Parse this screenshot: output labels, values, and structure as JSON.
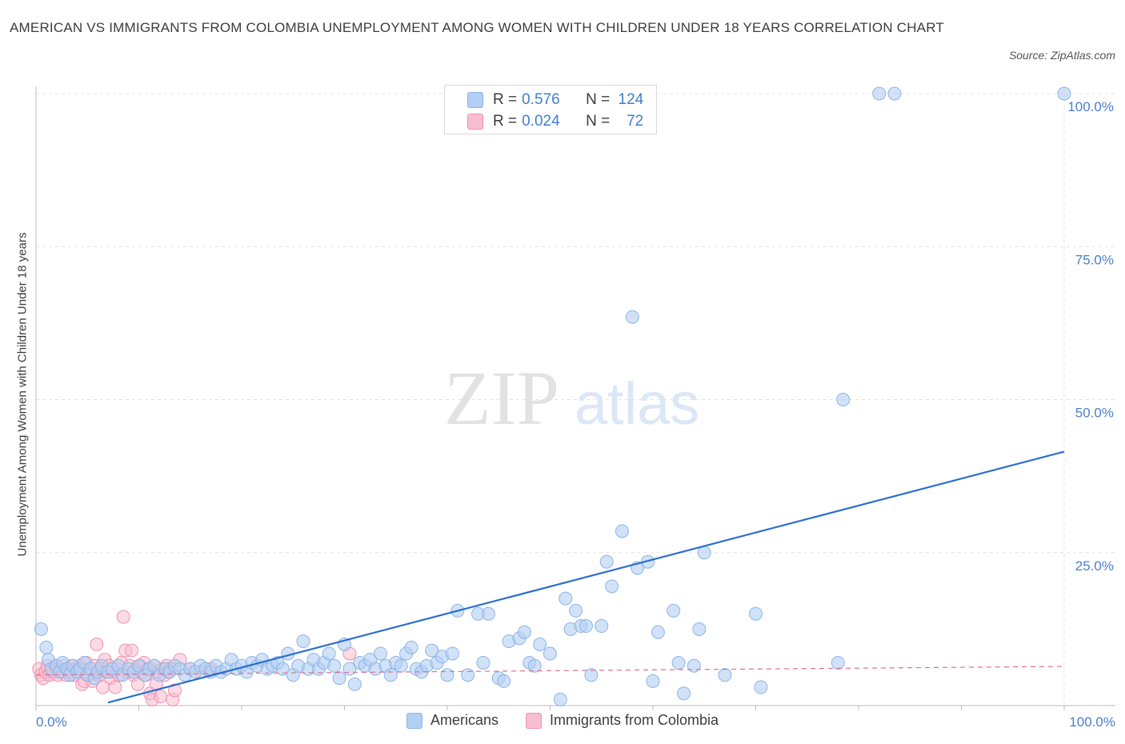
{
  "header": {
    "title": "AMERICAN VS IMMIGRANTS FROM COLOMBIA UNEMPLOYMENT AMONG WOMEN WITH CHILDREN UNDER 18 YEARS CORRELATION CHART",
    "source": "Source: ZipAtlas.com"
  },
  "watermark": {
    "zip": "ZIP",
    "atlas": "atlas"
  },
  "legend": {
    "rows": [
      {
        "r_label": "R =",
        "r_value": "0.576",
        "n_label": "N =",
        "n_value": "124"
      },
      {
        "r_label": "R =",
        "r_value": "0.024",
        "n_label": "N =",
        "n_value": "72"
      }
    ]
  },
  "colors": {
    "americans_fill": "#b3cff3",
    "americans_stroke": "#8db4e6",
    "americans_line": "#2a6fcf",
    "colombia_fill": "#f9bdd0",
    "colombia_stroke": "#f091ae",
    "colombia_line": "#e06d93",
    "axis_text": "#4a7fcb",
    "grid": "#e3e3e3"
  },
  "chart_data": {
    "type": "scatter",
    "title": "AMERICAN VS IMMIGRANTS FROM COLOMBIA UNEMPLOYMENT AMONG WOMEN WITH CHILDREN UNDER 18 YEARS CORRELATION CHART",
    "xlabel": "",
    "ylabel": "Unemployment Among Women with Children Under 18 years",
    "xlim": [
      0,
      100
    ],
    "ylim": [
      0,
      100
    ],
    "x_tick_labels": [
      "0.0%",
      "100.0%"
    ],
    "y_ticks": [
      25,
      50,
      75,
      100
    ],
    "y_tick_labels": [
      "25.0%",
      "50.0%",
      "75.0%",
      "100.0%"
    ],
    "grid": true,
    "legend_position": "bottom",
    "series": [
      {
        "name": "Americans",
        "R": 0.576,
        "N": 124,
        "trend": {
          "x": [
            7,
            100
          ],
          "y": [
            0.5,
            41.5
          ]
        },
        "points": [
          [
            0.5,
            12.5
          ],
          [
            1.0,
            9.5
          ],
          [
            1.2,
            7.5
          ],
          [
            1.5,
            6.0
          ],
          [
            2.0,
            6.5
          ],
          [
            2.3,
            5.5
          ],
          [
            2.6,
            7.0
          ],
          [
            3.0,
            6.0
          ],
          [
            3.3,
            5.0
          ],
          [
            3.6,
            6.5
          ],
          [
            4.0,
            5.5
          ],
          [
            4.3,
            6.0
          ],
          [
            4.7,
            7.0
          ],
          [
            5.0,
            5.0
          ],
          [
            5.3,
            6.0
          ],
          [
            5.7,
            4.5
          ],
          [
            6.0,
            5.5
          ],
          [
            6.4,
            6.5
          ],
          [
            7.0,
            5.5
          ],
          [
            7.4,
            6.0
          ],
          [
            8.0,
            6.5
          ],
          [
            8.4,
            5.0
          ],
          [
            9.0,
            6.0
          ],
          [
            9.5,
            5.5
          ],
          [
            10.0,
            6.5
          ],
          [
            10.6,
            5.0
          ],
          [
            11.0,
            6.0
          ],
          [
            11.5,
            6.5
          ],
          [
            12.0,
            5.0
          ],
          [
            12.6,
            6.0
          ],
          [
            13.0,
            5.5
          ],
          [
            13.5,
            6.5
          ],
          [
            14.0,
            6.0
          ],
          [
            14.5,
            5.0
          ],
          [
            15.0,
            6.0
          ],
          [
            15.5,
            5.5
          ],
          [
            16.0,
            6.5
          ],
          [
            16.5,
            6.0
          ],
          [
            17.0,
            5.5
          ],
          [
            17.5,
            6.5
          ],
          [
            18.0,
            5.5
          ],
          [
            18.5,
            6.0
          ],
          [
            19.0,
            7.5
          ],
          [
            19.5,
            6.0
          ],
          [
            20.0,
            6.5
          ],
          [
            20.5,
            5.5
          ],
          [
            21.0,
            7.0
          ],
          [
            21.5,
            6.5
          ],
          [
            22.0,
            7.5
          ],
          [
            22.5,
            6.0
          ],
          [
            23.0,
            6.5
          ],
          [
            23.5,
            7.0
          ],
          [
            24.0,
            6.0
          ],
          [
            24.5,
            8.5
          ],
          [
            25.0,
            5.0
          ],
          [
            25.5,
            6.5
          ],
          [
            26.0,
            10.5
          ],
          [
            26.5,
            6.0
          ],
          [
            27.0,
            7.5
          ],
          [
            27.5,
            6.0
          ],
          [
            28.0,
            7.0
          ],
          [
            28.5,
            8.5
          ],
          [
            29.0,
            6.5
          ],
          [
            29.5,
            4.5
          ],
          [
            30.0,
            10.0
          ],
          [
            30.5,
            6.0
          ],
          [
            31.0,
            3.5
          ],
          [
            31.5,
            7.0
          ],
          [
            32.0,
            6.5
          ],
          [
            32.5,
            7.5
          ],
          [
            33.0,
            6.0
          ],
          [
            33.5,
            8.5
          ],
          [
            34.0,
            6.5
          ],
          [
            34.5,
            5.0
          ],
          [
            35.0,
            7.0
          ],
          [
            35.5,
            6.5
          ],
          [
            36.0,
            8.5
          ],
          [
            36.5,
            9.5
          ],
          [
            37.0,
            6.0
          ],
          [
            37.5,
            5.5
          ],
          [
            38.0,
            6.5
          ],
          [
            38.5,
            9.0
          ],
          [
            39.0,
            7.0
          ],
          [
            39.5,
            8.0
          ],
          [
            40.0,
            5.0
          ],
          [
            40.5,
            8.5
          ],
          [
            41.0,
            15.5
          ],
          [
            42.0,
            5.0
          ],
          [
            43.0,
            15.0
          ],
          [
            43.5,
            7.0
          ],
          [
            44.0,
            15.0
          ],
          [
            45.0,
            4.5
          ],
          [
            45.5,
            4.0
          ],
          [
            46.0,
            10.5
          ],
          [
            47.0,
            11.0
          ],
          [
            47.5,
            12.0
          ],
          [
            48.0,
            7.0
          ],
          [
            48.5,
            6.5
          ],
          [
            49.0,
            10.0
          ],
          [
            50.0,
            8.5
          ],
          [
            51.0,
            1.0
          ],
          [
            51.5,
            17.5
          ],
          [
            52.0,
            12.5
          ],
          [
            52.5,
            15.5
          ],
          [
            53.0,
            13.0
          ],
          [
            53.5,
            13.0
          ],
          [
            54.0,
            5.0
          ],
          [
            55.0,
            13.0
          ],
          [
            55.5,
            23.5
          ],
          [
            56.0,
            19.5
          ],
          [
            57.0,
            28.5
          ],
          [
            58.0,
            63.5
          ],
          [
            58.5,
            22.5
          ],
          [
            59.5,
            23.5
          ],
          [
            60.0,
            4.0
          ],
          [
            60.5,
            12.0
          ],
          [
            62.0,
            15.5
          ],
          [
            62.5,
            7.0
          ],
          [
            63.0,
            2.0
          ],
          [
            64.0,
            6.5
          ],
          [
            64.5,
            12.5
          ],
          [
            65.0,
            25.0
          ],
          [
            67.0,
            5.0
          ],
          [
            70.0,
            15.0
          ],
          [
            70.5,
            3.0
          ],
          [
            78.0,
            7.0
          ],
          [
            78.5,
            50.0
          ],
          [
            82.0,
            100.0
          ],
          [
            83.5,
            100.0
          ],
          [
            100.0,
            100.0
          ]
        ]
      },
      {
        "name": "Immigrants from Colombia",
        "R": 0.024,
        "N": 72,
        "trend": {
          "x": [
            0,
            100
          ],
          "y": [
            5.0,
            6.4
          ]
        },
        "points": [
          [
            0.3,
            6.0
          ],
          [
            0.5,
            5.0
          ],
          [
            0.7,
            4.5
          ],
          [
            0.9,
            5.5
          ],
          [
            1.1,
            6.5
          ],
          [
            1.3,
            5.0
          ],
          [
            1.5,
            6.0
          ],
          [
            1.7,
            5.5
          ],
          [
            1.9,
            6.5
          ],
          [
            2.1,
            5.0
          ],
          [
            2.3,
            6.0
          ],
          [
            2.5,
            5.5
          ],
          [
            2.7,
            6.5
          ],
          [
            2.9,
            5.0
          ],
          [
            3.1,
            6.0
          ],
          [
            3.3,
            5.5
          ],
          [
            3.5,
            6.5
          ],
          [
            3.7,
            5.0
          ],
          [
            3.9,
            6.0
          ],
          [
            4.1,
            5.5
          ],
          [
            4.3,
            6.5
          ],
          [
            4.5,
            3.5
          ],
          [
            4.7,
            4.0
          ],
          [
            4.9,
            7.0
          ],
          [
            5.1,
            5.0
          ],
          [
            5.3,
            6.0
          ],
          [
            5.5,
            4.0
          ],
          [
            5.7,
            6.5
          ],
          [
            5.9,
            10.0
          ],
          [
            6.1,
            5.0
          ],
          [
            6.3,
            6.0
          ],
          [
            6.5,
            3.0
          ],
          [
            6.7,
            7.5
          ],
          [
            6.9,
            5.5
          ],
          [
            7.1,
            6.5
          ],
          [
            7.3,
            4.5
          ],
          [
            7.5,
            5.5
          ],
          [
            7.7,
            3.0
          ],
          [
            7.9,
            6.0
          ],
          [
            8.1,
            5.0
          ],
          [
            8.3,
            7.0
          ],
          [
            8.5,
            14.5
          ],
          [
            8.7,
            9.0
          ],
          [
            8.9,
            5.5
          ],
          [
            9.1,
            6.5
          ],
          [
            9.3,
            9.0
          ],
          [
            9.5,
            5.0
          ],
          [
            9.7,
            6.0
          ],
          [
            9.9,
            3.5
          ],
          [
            10.1,
            6.5
          ],
          [
            10.3,
            5.5
          ],
          [
            10.5,
            7.0
          ],
          [
            10.7,
            5.0
          ],
          [
            10.9,
            6.0
          ],
          [
            11.1,
            2.0
          ],
          [
            11.3,
            1.0
          ],
          [
            11.5,
            6.5
          ],
          [
            11.7,
            3.5
          ],
          [
            11.9,
            5.5
          ],
          [
            12.1,
            1.5
          ],
          [
            12.3,
            6.0
          ],
          [
            12.5,
            5.0
          ],
          [
            12.7,
            6.5
          ],
          [
            12.9,
            5.5
          ],
          [
            13.1,
            6.0
          ],
          [
            13.3,
            1.0
          ],
          [
            13.5,
            2.5
          ],
          [
            14.0,
            7.5
          ],
          [
            15.0,
            6.0
          ],
          [
            16.0,
            5.5
          ],
          [
            17.0,
            6.0
          ],
          [
            30.5,
            8.5
          ]
        ]
      }
    ]
  },
  "bottom_legend": {
    "americans": "Americans",
    "colombia": "Immigrants from Colombia"
  }
}
